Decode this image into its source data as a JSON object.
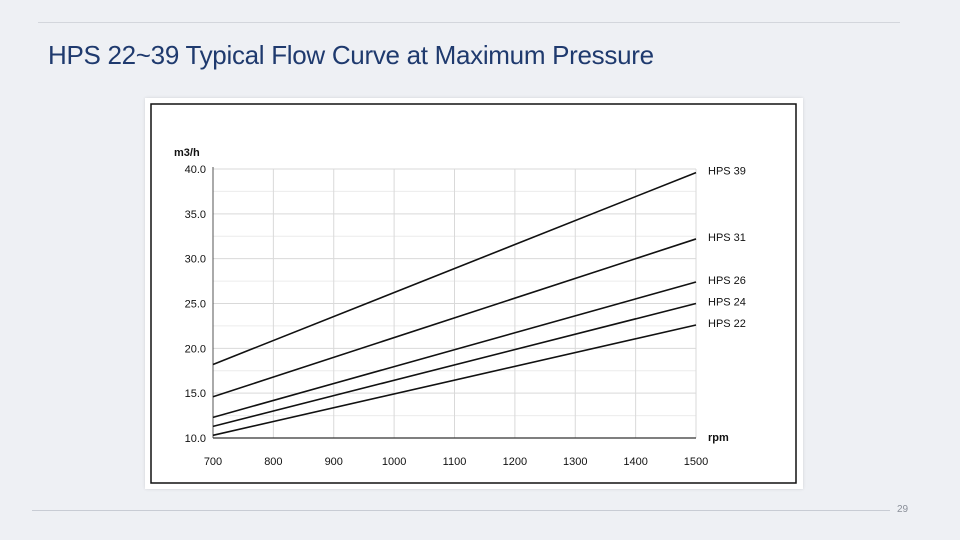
{
  "slide": {
    "title": "HPS 22~39  Typical Flow Curve at Maximum Pressure",
    "page_number": "29"
  },
  "chart_data": {
    "type": "line",
    "title": "",
    "xlabel": "rpm",
    "ylabel": "m3/h",
    "xlim": [
      700,
      1500
    ],
    "ylim": [
      10.0,
      40.0
    ],
    "x_ticks": [
      "700",
      "800",
      "900",
      "1000",
      "1100",
      "1200",
      "1300",
      "1400",
      "1500"
    ],
    "y_ticks": [
      "10.0",
      "15.0",
      "20.0",
      "25.0",
      "30.0",
      "35.0",
      "40.0"
    ],
    "grid": true,
    "legend": "labels at right end of lines",
    "line_color": "#111111",
    "series": [
      {
        "name": "HPS 39",
        "x": [
          700,
          1500
        ],
        "y": [
          18.2,
          39.6
        ]
      },
      {
        "name": "HPS 31",
        "x": [
          700,
          1500
        ],
        "y": [
          14.6,
          32.2
        ]
      },
      {
        "name": "HPS 26",
        "x": [
          700,
          1500
        ],
        "y": [
          12.3,
          27.4
        ]
      },
      {
        "name": "HPS 24",
        "x": [
          700,
          1500
        ],
        "y": [
          11.3,
          25.0
        ]
      },
      {
        "name": "HPS 22",
        "x": [
          700,
          1500
        ],
        "y": [
          10.3,
          22.6
        ]
      }
    ]
  }
}
